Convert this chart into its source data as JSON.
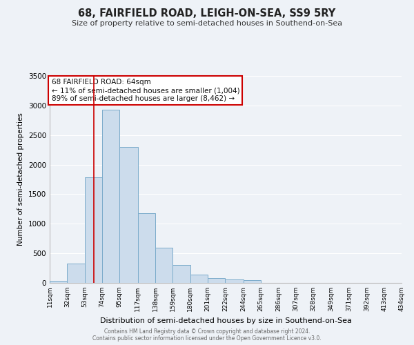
{
  "title": "68, FAIRFIELD ROAD, LEIGH-ON-SEA, SS9 5RY",
  "subtitle": "Size of property relative to semi-detached houses in Southend-on-Sea",
  "xlabel": "Distribution of semi-detached houses by size in Southend-on-Sea",
  "ylabel": "Number of semi-detached properties",
  "bin_edges": [
    11,
    32,
    53,
    74,
    95,
    117,
    138,
    159,
    180,
    201,
    222,
    244,
    265,
    286,
    307,
    328,
    349,
    371,
    392,
    413,
    434
  ],
  "bar_heights": [
    30,
    330,
    1780,
    2930,
    2300,
    1180,
    600,
    300,
    140,
    80,
    55,
    50,
    0,
    0,
    0,
    0,
    0,
    0,
    0,
    0
  ],
  "bar_color": "#ccdcec",
  "bar_edge_color": "#7aabca",
  "background_color": "#eef2f7",
  "grid_color": "#ffffff",
  "red_line_x": 64,
  "ylim": [
    0,
    3500
  ],
  "yticks": [
    0,
    500,
    1000,
    1500,
    2000,
    2500,
    3000,
    3500
  ],
  "annotation_line1": "68 FAIRFIELD ROAD: 64sqm",
  "annotation_line2": "← 11% of semi-detached houses are smaller (1,004)",
  "annotation_line3": "89% of semi-detached houses are larger (8,462) →",
  "footer1": "Contains HM Land Registry data © Crown copyright and database right 2024.",
  "footer2": "Contains public sector information licensed under the Open Government Licence v3.0."
}
